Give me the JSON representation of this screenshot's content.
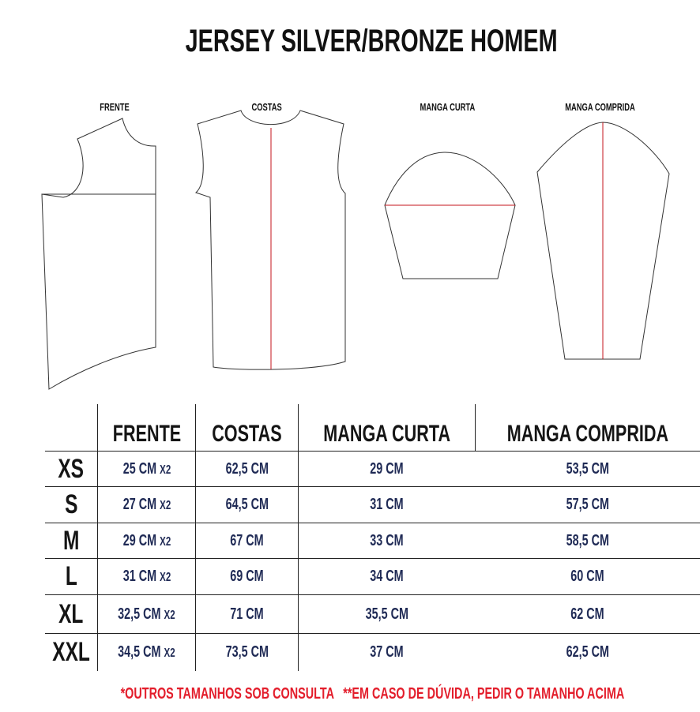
{
  "title": "JERSEY SILVER/BRONZE HOMEM",
  "pattern_labels": [
    "FRENTE",
    "COSTAS",
    "MANGA CURTA",
    "MANGA COMPRIDA"
  ],
  "table": {
    "headers": [
      "",
      "FRENTE",
      "COSTAS",
      "MANGA CURTA",
      "MANGA COMPRIDA"
    ],
    "rows": [
      {
        "size": "XS",
        "frente": "25 CM",
        "mult": "X2",
        "costas": "62,5 CM",
        "manga_curta": "29 CM",
        "manga_comprida": "53,5 CM"
      },
      {
        "size": "S",
        "frente": "27 CM",
        "mult": "X2",
        "costas": "64,5 CM",
        "manga_curta": "31 CM",
        "manga_comprida": "57,5 CM"
      },
      {
        "size": "M",
        "frente": "29 CM",
        "mult": "X2",
        "costas": "67 CM",
        "manga_curta": "33 CM",
        "manga_comprida": "58,5 CM"
      },
      {
        "size": "L",
        "frente": "31 CM",
        "mult": "X2",
        "costas": "69 CM",
        "manga_curta": "34 CM",
        "manga_comprida": "60 CM"
      },
      {
        "size": "XL",
        "frente": "32,5 CM",
        "mult": "X2",
        "costas": "71 CM",
        "manga_curta": "35,5 CM",
        "manga_comprida": "62 CM"
      },
      {
        "size": "XXL",
        "frente": "34,5 CM",
        "mult": "X2",
        "costas": "73,5 CM",
        "manga_curta": "37 CM",
        "manga_comprida": "62,5 CM"
      }
    ]
  },
  "notes": [
    "*OUTROS TAMANHOS SOB CONSULTA",
    "**EM CASO DE DÚVIDA, PEDIR O TAMANHO ACIMA"
  ],
  "colors": {
    "values": "#1f2a55",
    "notes": "#e31d2b",
    "center_line": "#c4161c"
  }
}
